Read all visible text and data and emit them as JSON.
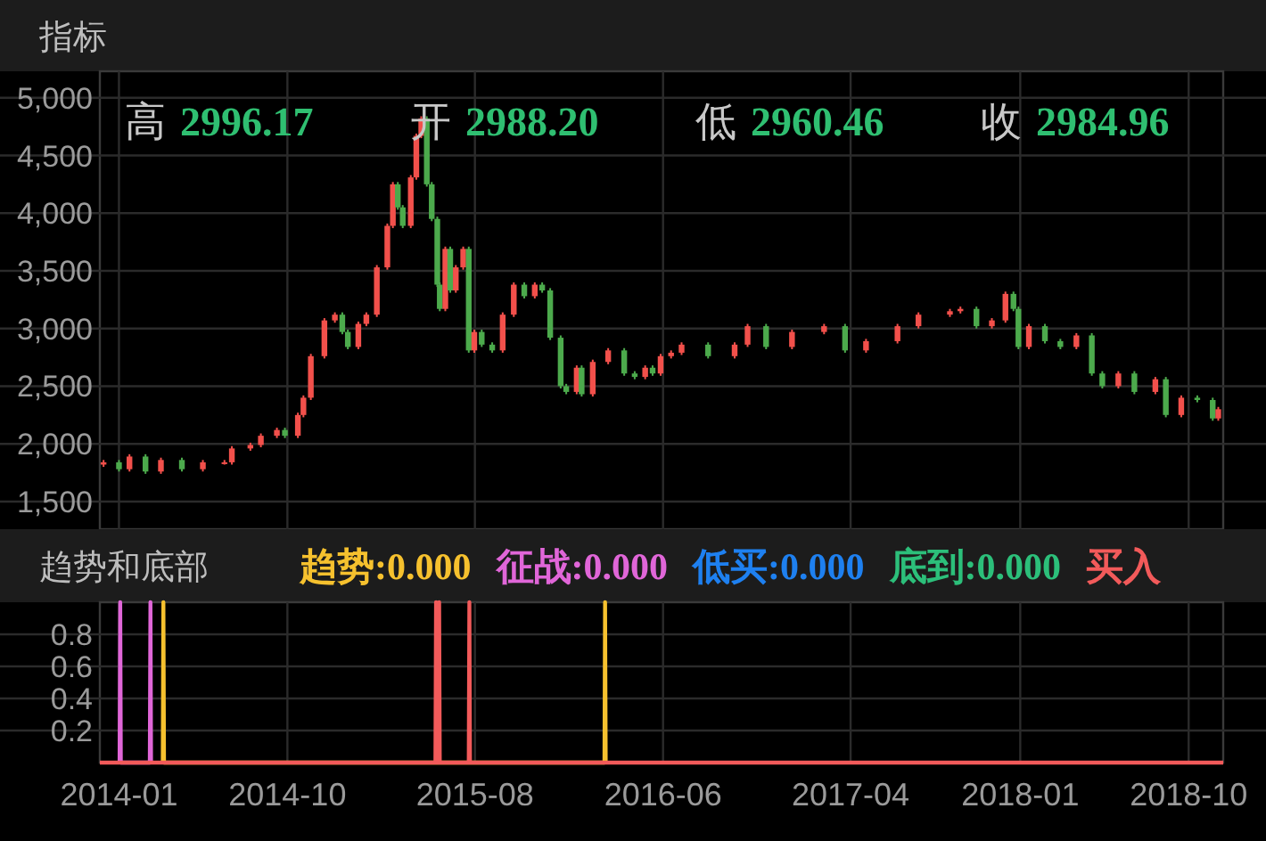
{
  "chart_data": [
    {
      "type": "candlestick",
      "title": "指标",
      "annotations": [
        "高 2996.17",
        "开 2988.20",
        "低 2960.46",
        "收 2984.96"
      ],
      "x": [
        "2013-12-07",
        "2014-01-01",
        "2014-01-18",
        "2014-02-13",
        "2014-03-10",
        "2014-04-13",
        "2014-05-17",
        "2014-06-21",
        "2014-07-03",
        "2014-08-02",
        "2014-08-19",
        "2014-09-14",
        "2014-09-27",
        "2014-10-18",
        "2014-10-27",
        "2014-11-08",
        "2014-11-30",
        "2014-12-17",
        "2014-12-29",
        "2015-01-07",
        "2015-01-24",
        "2015-02-06",
        "2015-02-23",
        "2015-03-12",
        "2015-03-21",
        "2015-03-29",
        "2015-04-06",
        "2015-04-19",
        "2015-04-28",
        "2015-05-06",
        "2015-05-15",
        "2015-05-23",
        "2015-06-01",
        "2015-06-05",
        "2015-06-14",
        "2015-06-22",
        "2015-07-01",
        "2015-07-13",
        "2015-07-22",
        "2015-07-31",
        "2015-08-12",
        "2015-08-29",
        "2015-09-15",
        "2015-10-03",
        "2015-10-20",
        "2015-11-06",
        "2015-11-18",
        "2015-12-01",
        "2015-12-18",
        "2015-12-27",
        "2016-01-13",
        "2016-01-21",
        "2016-02-08",
        "2016-03-04",
        "2016-03-30",
        "2016-04-16",
        "2016-05-03",
        "2016-05-15",
        "2016-05-28",
        "2016-06-14",
        "2016-07-01",
        "2016-08-13",
        "2016-09-25",
        "2016-10-16",
        "2016-11-15",
        "2016-12-27",
        "2017-02-17",
        "2017-03-23",
        "2017-04-26",
        "2017-06-16",
        "2017-07-20",
        "2017-09-09",
        "2017-09-26",
        "2017-10-22",
        "2017-11-16",
        "2017-12-08",
        "2017-12-21",
        "2017-12-29",
        "2018-01-15",
        "2018-02-10",
        "2018-03-07",
        "2018-04-02",
        "2018-04-27",
        "2018-05-14",
        "2018-06-09",
        "2018-07-05",
        "2018-08-08",
        "2018-08-25",
        "2018-09-19",
        "2018-10-15",
        "2018-11-09",
        "2018-11-18"
      ],
      "ohlc": [
        [
          1820,
          1860,
          1800,
          1840
        ],
        [
          1840,
          1860,
          1760,
          1780
        ],
        [
          1780,
          1910,
          1760,
          1890
        ],
        [
          1890,
          1910,
          1740,
          1760
        ],
        [
          1760,
          1880,
          1740,
          1860
        ],
        [
          1860,
          1880,
          1760,
          1780
        ],
        [
          1780,
          1860,
          1760,
          1840
        ],
        [
          1840,
          1860,
          1820,
          1840
        ],
        [
          1840,
          1980,
          1820,
          1960
        ],
        [
          1960,
          2010,
          1940,
          1990
        ],
        [
          1990,
          2090,
          1970,
          2070
        ],
        [
          2070,
          2140,
          2050,
          2120
        ],
        [
          2120,
          2140,
          2050,
          2070
        ],
        [
          2070,
          2270,
          2050,
          2250
        ],
        [
          2250,
          2420,
          2230,
          2400
        ],
        [
          2400,
          2780,
          2380,
          2760
        ],
        [
          2760,
          3090,
          2740,
          3070
        ],
        [
          3070,
          3140,
          3050,
          3120
        ],
        [
          3120,
          3140,
          2950,
          2970
        ],
        [
          2970,
          2990,
          2820,
          2840
        ],
        [
          2840,
          3060,
          2820,
          3040
        ],
        [
          3040,
          3140,
          3020,
          3120
        ],
        [
          3120,
          3550,
          3100,
          3530
        ],
        [
          3530,
          3910,
          3510,
          3890
        ],
        [
          3890,
          4270,
          3870,
          4250
        ],
        [
          4250,
          4270,
          4030,
          4050
        ],
        [
          4050,
          4070,
          3870,
          3890
        ],
        [
          3890,
          4330,
          3870,
          4310
        ],
        [
          4310,
          4690,
          4290,
          4670
        ],
        [
          4670,
          4840,
          4650,
          4820
        ],
        [
          4820,
          4840,
          4230,
          4250
        ],
        [
          4250,
          4270,
          3930,
          3950
        ],
        [
          3950,
          3970,
          3360,
          3380
        ],
        [
          3380,
          3400,
          3150,
          3170
        ],
        [
          3170,
          3710,
          3150,
          3690
        ],
        [
          3690,
          3710,
          3310,
          3330
        ],
        [
          3330,
          3550,
          3310,
          3530
        ],
        [
          3530,
          3710,
          3510,
          3690
        ],
        [
          3690,
          3710,
          2790,
          2810
        ],
        [
          2810,
          2990,
          2790,
          2970
        ],
        [
          2970,
          2990,
          2840,
          2860
        ],
        [
          2860,
          2880,
          2790,
          2810
        ],
        [
          2810,
          3140,
          2790,
          3120
        ],
        [
          3120,
          3400,
          3100,
          3380
        ],
        [
          3380,
          3400,
          3260,
          3280
        ],
        [
          3280,
          3400,
          3260,
          3380
        ],
        [
          3380,
          3400,
          3310,
          3330
        ],
        [
          3330,
          3350,
          2900,
          2920
        ],
        [
          2920,
          2940,
          2480,
          2500
        ],
        [
          2500,
          2520,
          2430,
          2450
        ],
        [
          2450,
          2680,
          2430,
          2660
        ],
        [
          2660,
          2680,
          2410,
          2430
        ],
        [
          2430,
          2730,
          2410,
          2710
        ],
        [
          2710,
          2830,
          2690,
          2810
        ],
        [
          2810,
          2830,
          2590,
          2610
        ],
        [
          2610,
          2630,
          2560,
          2580
        ],
        [
          2580,
          2680,
          2560,
          2660
        ],
        [
          2660,
          2680,
          2590,
          2610
        ],
        [
          2610,
          2780,
          2590,
          2760
        ],
        [
          2760,
          2810,
          2740,
          2790
        ],
        [
          2790,
          2880,
          2770,
          2860
        ],
        [
          2860,
          2880,
          2740,
          2760
        ],
        [
          2760,
          2880,
          2740,
          2860
        ],
        [
          2860,
          3040,
          2840,
          3020
        ],
        [
          3020,
          3040,
          2820,
          2840
        ],
        [
          2840,
          2990,
          2820,
          2970
        ],
        [
          2970,
          3040,
          2950,
          3020
        ],
        [
          3020,
          3040,
          2790,
          2810
        ],
        [
          2810,
          2910,
          2790,
          2890
        ],
        [
          2890,
          3040,
          2870,
          3020
        ],
        [
          3020,
          3140,
          3000,
          3120
        ],
        [
          3120,
          3170,
          3100,
          3150
        ],
        [
          3150,
          3190,
          3130,
          3170
        ],
        [
          3170,
          3190,
          3000,
          3020
        ],
        [
          3020,
          3090,
          3000,
          3070
        ],
        [
          3070,
          3320,
          3050,
          3300
        ],
        [
          3300,
          3320,
          3150,
          3170
        ],
        [
          3170,
          3190,
          2820,
          2840
        ],
        [
          2840,
          3040,
          2820,
          3020
        ],
        [
          3020,
          3040,
          2870,
          2890
        ],
        [
          2890,
          2910,
          2820,
          2840
        ],
        [
          2840,
          2960,
          2820,
          2940
        ],
        [
          2940,
          2960,
          2590,
          2610
        ],
        [
          2610,
          2630,
          2480,
          2500
        ],
        [
          2500,
          2630,
          2480,
          2610
        ],
        [
          2610,
          2630,
          2430,
          2450
        ],
        [
          2450,
          2580,
          2430,
          2560
        ],
        [
          2560,
          2580,
          2230,
          2250
        ],
        [
          2250,
          2420,
          2230,
          2400
        ],
        [
          2400,
          2420,
          2360,
          2380
        ],
        [
          2380,
          2400,
          2200,
          2220
        ],
        [
          2220,
          2320,
          2200,
          2300
        ]
      ],
      "xlim": [
        "2013-12-01",
        "2018-11-26"
      ],
      "xticks": [
        "2014-01",
        "2014-10",
        "2015-08",
        "2016-06",
        "2017-04",
        "2018-01",
        "2018-10"
      ],
      "ylim": [
        1260,
        5230
      ],
      "yticks": [
        {
          "value": 1500,
          "label": "1,500"
        },
        {
          "value": 2000,
          "label": "2,000"
        },
        {
          "value": 2500,
          "label": "2,500"
        },
        {
          "value": 3000,
          "label": "3,000"
        },
        {
          "value": 3500,
          "label": "3,500"
        },
        {
          "value": 4000,
          "label": "4,000"
        },
        {
          "value": 4500,
          "label": "4,500"
        },
        {
          "value": 5000,
          "label": "5,000"
        }
      ],
      "grid": true,
      "tick_labels": "y"
    },
    {
      "type": "line",
      "title": "趋势和底部",
      "legend": "top",
      "grid": true,
      "xlim": [
        "2013-12-01",
        "2018-11-26"
      ],
      "xticks": [
        "2014-01",
        "2014-10",
        "2015-08",
        "2016-06",
        "2017-04",
        "2018-01",
        "2018-10"
      ],
      "ylim": [
        0,
        1
      ],
      "yticks": [
        0.2,
        0.4,
        0.6,
        0.8
      ],
      "series": [
        {
          "name": "趋势:0.000",
          "color": "#f6c12e",
          "x": [
            "2014-03-13",
            "2014-03-14",
            "2014-03-15",
            "2016-02-27",
            "2016-02-28",
            "2016-02-29"
          ],
          "values": [
            0,
            1,
            0,
            0,
            1,
            0
          ]
        },
        {
          "name": "征战:0.000",
          "color": "#e066d8",
          "x": [
            "2014-01-02",
            "2014-01-03",
            "2014-01-04",
            "2014-02-20",
            "2014-02-21",
            "2014-02-22"
          ],
          "values": [
            0,
            1,
            0,
            0,
            1,
            0
          ]
        },
        {
          "name": "低买:0.000",
          "color": "#1e80f0"
        },
        {
          "name": "底到:0.000",
          "color": "#2cbf7a"
        },
        {
          "name": "买入",
          "color": "#f25a5a",
          "x": [
            "2013-12-01",
            "2015-05-29",
            "2015-05-30",
            "2015-05-31",
            "2015-06-03",
            "2015-06-04",
            "2015-06-05",
            "2015-07-22",
            "2015-07-23",
            "2015-07-24",
            "2018-11-26"
          ],
          "values": [
            0,
            0,
            1,
            0,
            0,
            1,
            0,
            0,
            1,
            0,
            0
          ]
        }
      ]
    }
  ]
}
